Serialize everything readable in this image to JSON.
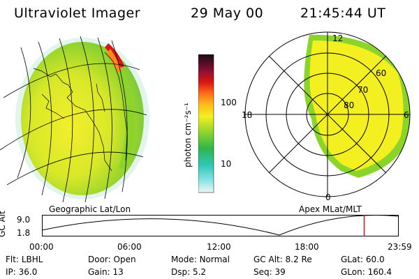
{
  "header": {
    "title": "Ultraviolet Imager",
    "date": "29 May 00",
    "time": "21:45:44 UT"
  },
  "colorbar": {
    "label": "photon cm⁻²s⁻¹",
    "ticks": [
      "100",
      "10"
    ]
  },
  "maps": {
    "left_caption": "Geographic Lat/Lon",
    "right_caption": "Apex MLat/MLT",
    "polar_lat_labels": [
      "60",
      "70",
      "80"
    ],
    "polar_mlt_labels": [
      "12",
      "18",
      "6",
      "0"
    ]
  },
  "timeline": {
    "ylabel": "GC Alt",
    "yticks": [
      "9.0",
      "1.8"
    ],
    "xticks": [
      "00:00",
      "06:00",
      "12:00",
      "18:00",
      "23:59"
    ],
    "marker_fraction": 0.905
  },
  "info": {
    "flt_label": "Flt:",
    "flt_value": "LBHL",
    "ip_label": "IP:",
    "ip_value": "36.0",
    "door_label": "Door:",
    "door_value": "Open",
    "gain_label": "Gain:",
    "gain_value": "13",
    "mode_label": "Mode:",
    "mode_value": "Normal",
    "dsp_label": "Dsp:",
    "dsp_value": "5.2",
    "gcalt_label": "GC Alt:",
    "gcalt_value": "8.2 Re",
    "seq_label": "Seq:",
    "seq_value": "39",
    "glat_label": "GLat:",
    "glat_value": "60.0",
    "glon_label": "GLon:",
    "glon_value": "160.4"
  },
  "colors": {
    "aurora_low": "#f6ef20",
    "aurora_mid": "#8bd42a",
    "aurora_high": "#d91515",
    "cyan": "#5ed6d6"
  }
}
